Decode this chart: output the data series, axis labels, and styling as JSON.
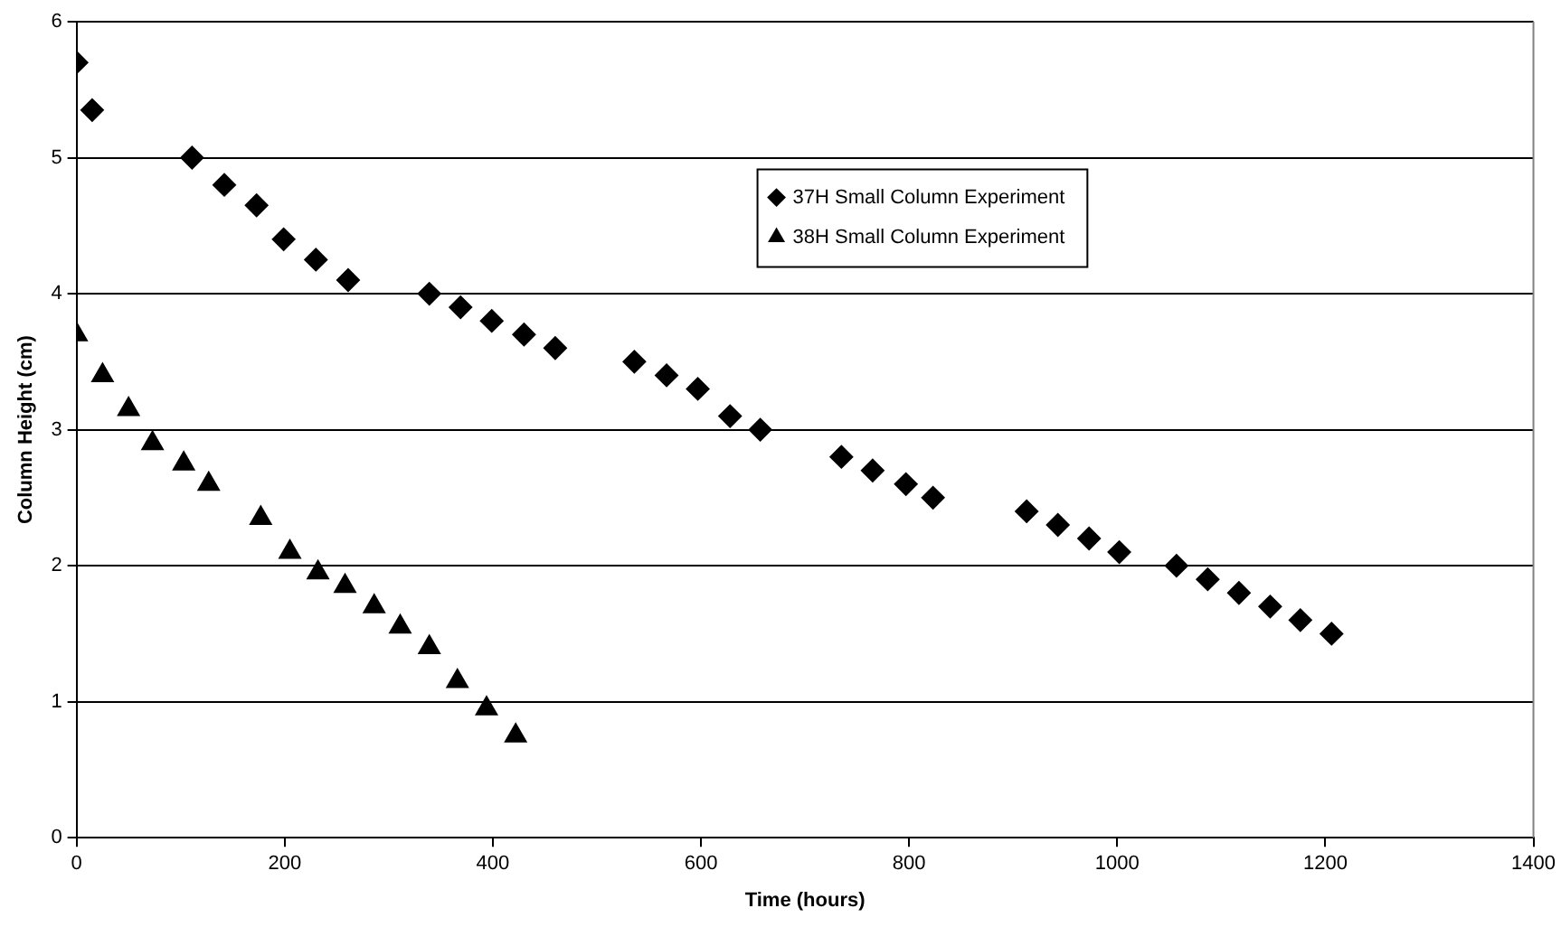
{
  "chart_data": {
    "type": "scatter",
    "xlabel": "Time (hours)",
    "ylabel": "Column Height (cm)",
    "xlim": [
      0,
      1400
    ],
    "xticks": [
      0,
      200,
      400,
      600,
      800,
      1000,
      1200,
      1400
    ],
    "ylim": [
      0,
      6
    ],
    "yticks": [
      0,
      1,
      2,
      3,
      4,
      5,
      6
    ],
    "grid": "y",
    "legend": "top",
    "series": [
      {
        "name": "37H Small Column Experiment",
        "color": "#000000",
        "marker": "diamond",
        "x": [
          0,
          15,
          111,
          142,
          173,
          199,
          230,
          261,
          339,
          369,
          399,
          430,
          460,
          536,
          567,
          597,
          628,
          657,
          735,
          765,
          797,
          823,
          913,
          943,
          973,
          1002,
          1057,
          1087,
          1117,
          1147,
          1176,
          1206
        ],
        "values": [
          5.7,
          5.35,
          5.0,
          4.8,
          4.65,
          4.4,
          4.25,
          4.1,
          4.0,
          3.9,
          3.8,
          3.7,
          3.6,
          3.5,
          3.4,
          3.3,
          3.1,
          3.0,
          2.8,
          2.7,
          2.6,
          2.5,
          2.4,
          2.3,
          2.2,
          2.1,
          2.0,
          1.9,
          1.8,
          1.7,
          1.6,
          1.5
        ]
      },
      {
        "name": "38H Small Column Experiment",
        "color": "#000000",
        "marker": "triangle",
        "x": [
          0,
          25,
          50,
          73,
          103,
          127,
          177,
          205,
          232,
          258,
          286,
          311,
          339,
          366,
          394,
          422
        ],
        "values": [
          3.7,
          3.4,
          3.15,
          2.9,
          2.75,
          2.6,
          2.35,
          2.1,
          1.95,
          1.85,
          1.7,
          1.55,
          1.4,
          1.15,
          0.95,
          0.75
        ]
      }
    ]
  }
}
